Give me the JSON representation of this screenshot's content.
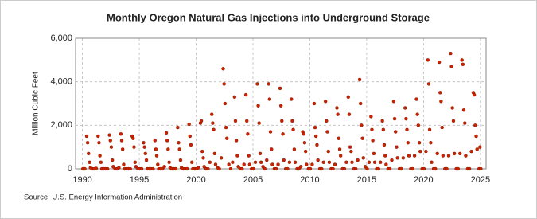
{
  "chart_data": {
    "type": "scatter",
    "title": "Monthly Oregon Natural Gas Injections into Underground Storage",
    "y_label": "Million Cubic Feet",
    "source": "Source: U.S. Energy Information Administration",
    "color": "#cc2200",
    "grid": true,
    "xlim": [
      1989.4,
      2025.5
    ],
    "xticks": [
      1990,
      1995,
      2000,
      2005,
      2010,
      2015,
      2020,
      2025
    ],
    "ylim": [
      0,
      6000
    ],
    "yticks": [
      0,
      {
        "value": 2000,
        "label": "2,000"
      },
      {
        "value": 4000,
        "label": "4,000"
      },
      {
        "value": 6000,
        "label": "6,000"
      }
    ],
    "x": [
      1990.04,
      1990.21,
      1990.38,
      1990.46,
      1990.54,
      1990.63,
      1990.71,
      1990.88,
      1991.04,
      1991.21,
      1991.38,
      1991.46,
      1991.54,
      1991.63,
      1991.71,
      1991.88,
      1992.04,
      1992.21,
      1992.38,
      1992.46,
      1992.54,
      1992.63,
      1992.71,
      1992.88,
      1993.04,
      1993.21,
      1993.38,
      1993.46,
      1993.54,
      1993.63,
      1993.71,
      1993.88,
      1994.04,
      1994.21,
      1994.38,
      1994.46,
      1994.54,
      1994.63,
      1994.71,
      1994.88,
      1995.04,
      1995.21,
      1995.38,
      1995.46,
      1995.54,
      1995.63,
      1995.71,
      1995.88,
      1996.04,
      1996.21,
      1996.38,
      1996.46,
      1996.54,
      1996.63,
      1996.71,
      1996.88,
      1997.04,
      1997.21,
      1997.38,
      1997.46,
      1997.54,
      1997.63,
      1997.71,
      1997.88,
      1998.04,
      1998.21,
      1998.38,
      1998.46,
      1998.54,
      1998.63,
      1998.71,
      1998.88,
      1999.04,
      1999.21,
      1999.38,
      1999.46,
      1999.54,
      1999.63,
      1999.71,
      1999.88,
      2000.04,
      2000.21,
      2000.38,
      2000.46,
      2000.54,
      2000.63,
      2000.71,
      2000.88,
      2001.04,
      2001.21,
      2001.38,
      2001.46,
      2001.54,
      2001.63,
      2001.71,
      2001.88,
      2002.04,
      2002.21,
      2002.38,
      2002.46,
      2002.54,
      2002.63,
      2002.71,
      2002.88,
      2003.04,
      2003.21,
      2003.38,
      2003.46,
      2003.54,
      2003.63,
      2003.71,
      2003.88,
      2004.04,
      2004.21,
      2004.38,
      2004.46,
      2004.54,
      2004.63,
      2004.71,
      2004.88,
      2005.04,
      2005.21,
      2005.38,
      2005.46,
      2005.54,
      2005.63,
      2005.71,
      2005.88,
      2006.04,
      2006.21,
      2006.38,
      2006.46,
      2006.54,
      2006.63,
      2006.71,
      2006.88,
      2007.04,
      2007.21,
      2007.38,
      2007.46,
      2007.54,
      2007.63,
      2007.71,
      2007.88,
      2008.04,
      2008.21,
      2008.38,
      2008.46,
      2008.54,
      2008.63,
      2008.71,
      2008.88,
      2009.04,
      2009.21,
      2009.38,
      2009.46,
      2009.54,
      2009.63,
      2009.71,
      2009.88,
      2010.04,
      2010.21,
      2010.38,
      2010.46,
      2010.54,
      2010.63,
      2010.71,
      2010.88,
      2011.04,
      2011.21,
      2011.38,
      2011.46,
      2011.54,
      2011.63,
      2011.71,
      2011.88,
      2012.04,
      2012.21,
      2012.38,
      2012.46,
      2012.54,
      2012.63,
      2012.71,
      2012.88,
      2013.04,
      2013.21,
      2013.38,
      2013.46,
      2013.54,
      2013.63,
      2013.71,
      2013.88,
      2014.04,
      2014.21,
      2014.38,
      2014.46,
      2014.54,
      2014.63,
      2014.71,
      2014.88,
      2015.04,
      2015.21,
      2015.38,
      2015.46,
      2015.54,
      2015.63,
      2015.71,
      2015.88,
      2016.04,
      2016.21,
      2016.38,
      2016.46,
      2016.54,
      2016.63,
      2016.71,
      2016.88,
      2017.04,
      2017.21,
      2017.38,
      2017.46,
      2017.54,
      2017.63,
      2017.71,
      2017.88,
      2018.04,
      2018.21,
      2018.38,
      2018.46,
      2018.54,
      2018.63,
      2018.71,
      2018.88,
      2019.04,
      2019.21,
      2019.38,
      2019.46,
      2019.54,
      2019.63,
      2019.71,
      2019.88,
      2020.04,
      2020.21,
      2020.38,
      2020.46,
      2020.54,
      2020.63,
      2020.71,
      2020.88,
      2021.04,
      2021.21,
      2021.38,
      2021.46,
      2021.54,
      2021.63,
      2021.71,
      2021.88,
      2022.04,
      2022.21,
      2022.38,
      2022.46,
      2022.54,
      2022.63,
      2022.71,
      2022.88,
      2023.04,
      2023.21,
      2023.38,
      2023.46,
      2023.54,
      2023.63,
      2023.71,
      2023.88,
      2024.04,
      2024.21,
      2024.38,
      2024.46,
      2024.54,
      2024.63,
      2024.71,
      2024.88,
      2024.96,
      2025.04
    ],
    "values": [
      0,
      0,
      1500,
      1200,
      700,
      300,
      50,
      0,
      0,
      20,
      1500,
      1200,
      600,
      300,
      0,
      0,
      0,
      0,
      1550,
      1300,
      1000,
      400,
      100,
      0,
      0,
      50,
      1600,
      1300,
      900,
      200,
      0,
      0,
      0,
      0,
      1500,
      1400,
      1000,
      300,
      100,
      0,
      0,
      0,
      1200,
      1000,
      700,
      400,
      0,
      0,
      0,
      0,
      1300,
      900,
      600,
      200,
      0,
      0,
      0,
      100,
      1650,
      1300,
      900,
      300,
      50,
      0,
      0,
      0,
      1900,
      1200,
      900,
      400,
      50,
      0,
      0,
      0,
      2050,
      1500,
      1100,
      300,
      0,
      0,
      0,
      50,
      2100,
      2200,
      800,
      500,
      100,
      0,
      0,
      300,
      2500,
      2100,
      1800,
      700,
      200,
      50,
      0,
      500,
      4600,
      3900,
      3000,
      1900,
      1400,
      200,
      0,
      300,
      3300,
      2200,
      1300,
      600,
      100,
      0,
      0,
      200,
      3400,
      2200,
      1600,
      600,
      200,
      0,
      0,
      300,
      3900,
      2900,
      2100,
      700,
      300,
      100,
      0,
      400,
      3900,
      3200,
      1700,
      900,
      200,
      0,
      0,
      200,
      3700,
      2900,
      2200,
      1600,
      400,
      0,
      0,
      300,
      3200,
      2200,
      1800,
      900,
      300,
      0,
      0,
      100,
      1700,
      1600,
      1200,
      800,
      200,
      0,
      0,
      200,
      3000,
      1900,
      1500,
      1100,
      400,
      0,
      0,
      300,
      3100,
      2200,
      1700,
      800,
      300,
      0,
      0,
      200,
      2800,
      2500,
      1400,
      900,
      600,
      0,
      0,
      300,
      3300,
      2500,
      1000,
      800,
      300,
      0,
      0,
      400,
      4100,
      3000,
      2000,
      1400,
      500,
      100,
      0,
      300,
      2400,
      1800,
      1300,
      700,
      300,
      0,
      0,
      300,
      2200,
      1800,
      1100,
      600,
      200,
      0,
      0,
      400,
      3100,
      2300,
      1700,
      1000,
      500,
      0,
      0,
      500,
      2800,
      2300,
      1800,
      1200,
      600,
      0,
      0,
      600,
      3200,
      2500,
      2000,
      1200,
      800,
      0,
      0,
      800,
      5000,
      3900,
      1800,
      1200,
      300,
      0,
      0,
      700,
      4900,
      3500,
      3100,
      1900,
      600,
      0,
      0,
      600,
      5300,
      4700,
      2800,
      2200,
      700,
      0,
      0,
      700,
      5000,
      4800,
      2700,
      2100,
      600,
      0,
      0,
      800,
      3500,
      3400,
      2000,
      1500,
      900,
      0,
      1000,
      0
    ]
  }
}
